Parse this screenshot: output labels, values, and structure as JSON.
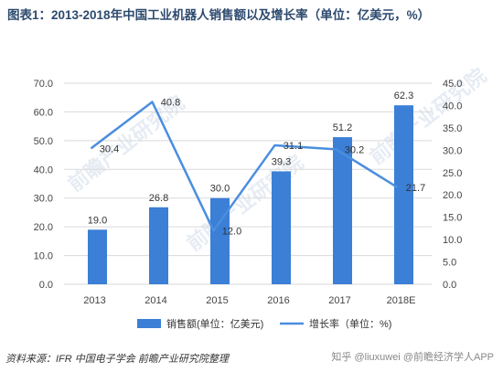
{
  "title": "图表1：2013-2018年中国工业机器人销售额以及增长率（单位：亿美元，%）",
  "source": "资料来源：IFR 中国电子学会  前瞻产业研究院整理",
  "watermark_text": "前瞻产业研究院",
  "corner_mark": "知乎 @liuxuwei  @前瞻经济学人APP",
  "chart_data": {
    "type": "bar",
    "categories": [
      "2013",
      "2014",
      "2015",
      "2016",
      "2017",
      "2018E"
    ],
    "series": [
      {
        "name": "销售额(单位：亿美元)",
        "type": "bar",
        "axis": "left",
        "values": [
          19.0,
          26.8,
          30.0,
          39.3,
          51.2,
          62.3
        ],
        "labels": [
          "19.0",
          "26.8",
          "30.0",
          "39.3",
          "51.2",
          "62.3"
        ],
        "color": "#3b7fd6"
      },
      {
        "name": "增长率（单位：%)",
        "type": "line",
        "axis": "right",
        "values": [
          30.4,
          40.8,
          12.0,
          31.1,
          30.2,
          21.7
        ],
        "labels": [
          "30.4",
          "40.8",
          "12.0",
          "31.1",
          "30.2",
          "21.7"
        ],
        "color": "#4a8edf"
      }
    ],
    "y_left": {
      "min": 0,
      "max": 70,
      "step": 10,
      "ticks": [
        "0.0",
        "10.0",
        "20.0",
        "30.0",
        "40.0",
        "50.0",
        "60.0",
        "70.0"
      ]
    },
    "y_right": {
      "min": 0,
      "max": 45,
      "step": 5,
      "ticks": [
        "0.0",
        "5.0",
        "10.0",
        "15.0",
        "20.0",
        "25.0",
        "30.0",
        "35.0",
        "40.0",
        "45.0"
      ]
    },
    "grid": true,
    "legend": "bottom-center"
  }
}
